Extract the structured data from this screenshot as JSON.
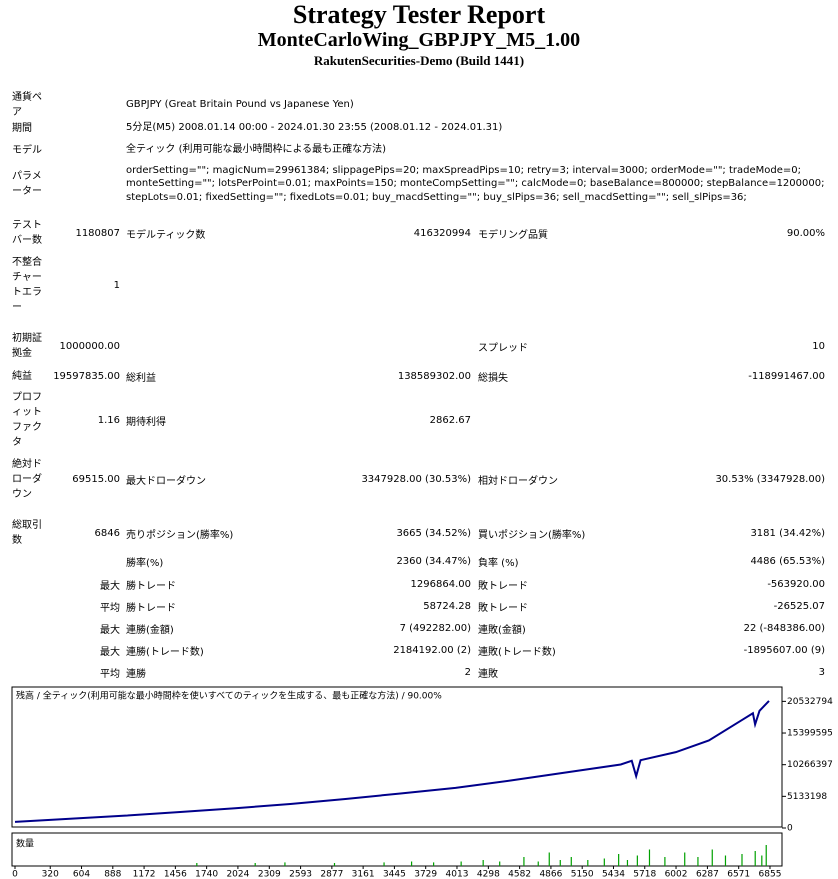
{
  "header": {
    "title": "Strategy Tester Report",
    "subtitle": "MonteCarloWing_GBPJPY_M5_1.00",
    "build": "RakutenSecurities-Demo (Build 1441)"
  },
  "report": {
    "rows": [
      {
        "label": "通貨ペア",
        "value2": "GBPJPY (Great Britain Pound vs Japanese Yen)"
      },
      {
        "label": "期間",
        "value2": "5分足(M5) 2008.01.14 00:00 - 2024.01.30 23:55 (2008.01.12 - 2024.01.31)"
      },
      {
        "label": "モデル",
        "value2": "全ティック (利用可能な最小時間枠による最も正確な方法)"
      },
      {
        "label": "パラメーター",
        "value2": "orderSetting=\"\"; magicNum=29961384; slippagePips=20; maxSpreadPips=10; retry=3; interval=3000; orderMode=\"\"; tradeMode=0; monteSetting=\"\"; lotsPerPoint=0.01; maxPoints=150; monteCompSetting=\"\"; calcMode=0; baseBalance=800000; stepBalance=1200000; stepLots=0.01; fixedSetting=\"\"; fixedLots=0.01; buy_macdSetting=\"\"; buy_slPips=36; sell_macdSetting=\"\"; sell_slPips=36;"
      },
      {
        "label": "テストバー数",
        "value": "1180807",
        "label2": "モデルティック数",
        "value2n": "416320994",
        "label3": "モデリング品質",
        "value3": "90.00%"
      },
      {
        "label": "不整合チャートエラー",
        "value": "1"
      },
      {
        "label": "初期証拠金",
        "value": "1000000.00",
        "label3": "スプレッド",
        "value3": "10"
      },
      {
        "label": "純益",
        "value": "19597835.00",
        "label2": "総利益",
        "value2n": "138589302.00",
        "label3": "総損失",
        "value3": "-118991467.00"
      },
      {
        "label": "プロフィットファクタ",
        "value": "1.16",
        "label2": "期待利得",
        "value2n": "2862.67"
      },
      {
        "label": "絶対ドローダウン",
        "value": "69515.00",
        "label2": "最大ドローダウン",
        "value2n": "3347928.00 (30.53%)",
        "label3": "相対ドローダウン",
        "value3": "30.53% (3347928.00)"
      },
      {
        "label": "総取引数",
        "value": "6846",
        "label2": "売りポジション(勝率%)",
        "value2n": "3665 (34.52%)",
        "label3": "買いポジション(勝率%)",
        "value3": "3181 (34.42%)"
      },
      {
        "label2": "勝率(%)",
        "value2n": "2360 (34.47%)",
        "label3": "負率 (%)",
        "value3": "4486 (65.53%)"
      },
      {
        "value": "最大",
        "label2": "勝トレード",
        "value2n": "1296864.00",
        "label3": "敗トレード",
        "value3": "-563920.00"
      },
      {
        "value": "平均",
        "label2": "勝トレード",
        "value2n": "58724.28",
        "label3": "敗トレード",
        "value3": "-26525.07"
      },
      {
        "value": "最大",
        "label2": "連勝(金額)",
        "value2n": "7 (492282.00)",
        "label3": "連敗(金額)",
        "value3": "22 (-848386.00)"
      },
      {
        "value": "最大",
        "label2": "連勝(トレード数)",
        "value2n": "2184192.00 (2)",
        "label3": "連敗(トレード数)",
        "value3": "-1895607.00 (9)"
      },
      {
        "value": "平均",
        "label2": "連勝",
        "value2n": "2",
        "label3": "連敗",
        "value3": "3"
      }
    ]
  },
  "chart_data": [
    {
      "type": "line",
      "title": "残高 / 全ティック(利用可能な最小時間枠を使いすべてのティックを生成する、最も正確な方法) / 90.00%",
      "x": [
        0,
        500,
        1000,
        1500,
        2000,
        2500,
        3000,
        3500,
        4000,
        4500,
        5000,
        5500,
        5600,
        5640,
        5680,
        6000,
        6300,
        6600,
        6700,
        6720,
        6760,
        6846
      ],
      "series": [
        {
          "color": "#00008b",
          "values": [
            1000000,
            1500000,
            2000000,
            2600000,
            3200000,
            3900000,
            4700000,
            5600000,
            6500000,
            7700000,
            9000000,
            10300000,
            10900000,
            8400000,
            11000000,
            12300000,
            14200000,
            17500000,
            18600000,
            16800000,
            19000000,
            20600000
          ]
        }
      ],
      "xlim": [
        0,
        6946
      ],
      "xticks": [
        0,
        320,
        604,
        888,
        1172,
        1456,
        1740,
        2024,
        2309,
        2593,
        2877,
        3161,
        3445,
        3729,
        4013,
        4298,
        4582,
        4866,
        5150,
        5434,
        5718,
        6002,
        6287,
        6571,
        6855
      ],
      "ylim": [
        0,
        22700000
      ],
      "yticks": [
        0,
        5133198,
        10266397,
        15399595,
        20532794
      ]
    },
    {
      "type": "bar",
      "title": "数量",
      "color": "#00a000",
      "xlim": [
        0,
        6946
      ],
      "ylim": [
        0,
        1
      ],
      "x": [
        1650,
        2180,
        2450,
        2900,
        3350,
        3600,
        3800,
        4050,
        4250,
        4400,
        4620,
        4750,
        4850,
        4950,
        5050,
        5200,
        5350,
        5480,
        5560,
        5650,
        5760,
        5900,
        6080,
        6200,
        6330,
        6450,
        6600,
        6720,
        6780,
        6820
      ],
      "values": [
        0.1,
        0.1,
        0.12,
        0.1,
        0.12,
        0.15,
        0.12,
        0.15,
        0.2,
        0.15,
        0.3,
        0.15,
        0.45,
        0.2,
        0.3,
        0.2,
        0.25,
        0.4,
        0.2,
        0.35,
        0.55,
        0.3,
        0.45,
        0.3,
        0.55,
        0.35,
        0.4,
        0.5,
        0.35,
        0.7
      ]
    }
  ]
}
